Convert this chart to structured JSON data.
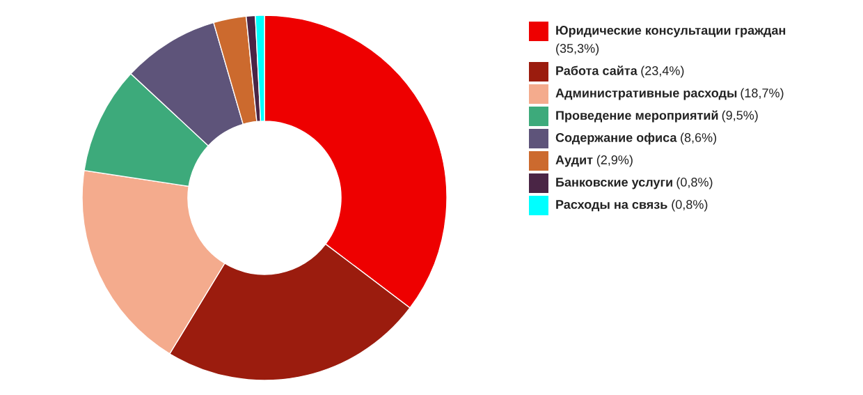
{
  "chart_data": {
    "type": "donut",
    "categories": [
      "Юридические консультации граждан",
      "Работа сайта",
      "Административные расходы",
      "Проведение мероприятий",
      "Содержание офиса",
      "Аудит",
      "Банковские услуги",
      "Расходы на связь"
    ],
    "values": [
      35.3,
      23.4,
      18.7,
      9.5,
      8.6,
      2.9,
      0.8,
      0.8
    ],
    "value_labels": [
      "(35,3%)",
      "(23,4%)",
      "(18,7%)",
      "(9,5%)",
      "(8,6%)",
      "(2,9%)",
      "(0,8%)",
      "(0,8%)"
    ],
    "colors": [
      "#ee0000",
      "#9b1c0e",
      "#f4ab8d",
      "#3daa7b",
      "#5e547a",
      "#cc6a2e",
      "#4a2545",
      "#00ffff"
    ],
    "legend": "right"
  }
}
